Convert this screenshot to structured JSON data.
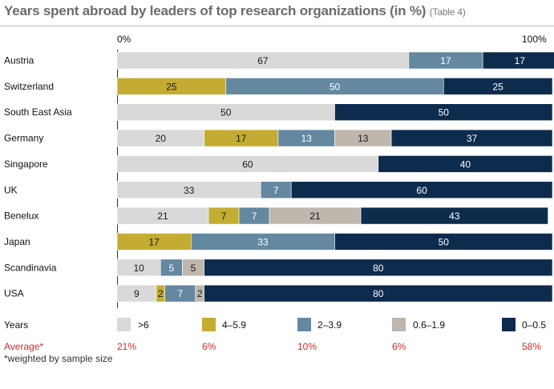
{
  "title": "Years spent abroad by leaders of top research organizations (in %)",
  "title_note": "(Table 4)",
  "axis": {
    "left_label": "0%",
    "right_label": "100%"
  },
  "colors": {
    "gt6": "#d9d9d9",
    "4to5_9": "#c4ac32",
    "2to3_9": "#6488a0",
    "0_6to1_9": "#bfb6ae",
    "0to0_5": "#0d2b4d"
  },
  "chart_data": {
    "type": "bar",
    "orientation": "horizontal",
    "stacked": true,
    "title": "Years spent abroad by leaders of top research organizations (in %)",
    "xlim": [
      0,
      100
    ],
    "categories": [
      "Austria",
      "Switzerland",
      "South East Asia",
      "Germany",
      "Singapore",
      "UK",
      "Benelux",
      "Japan",
      "Scandinavia",
      "USA"
    ],
    "series": [
      {
        "name": ">6",
        "color": "#d9d9d9",
        "values": [
          67,
          0,
          50,
          20,
          60,
          33,
          21,
          0,
          10,
          9
        ]
      },
      {
        "name": "4–5.9",
        "color": "#c4ac32",
        "values": [
          0,
          25,
          0,
          17,
          0,
          0,
          7,
          17,
          0,
          2
        ]
      },
      {
        "name": "2–3.9",
        "color": "#6488a0",
        "values": [
          17,
          50,
          0,
          13,
          0,
          7,
          7,
          33,
          5,
          7
        ]
      },
      {
        "name": "0.6–1.9",
        "color": "#bfb6ae",
        "values": [
          0,
          0,
          0,
          13,
          0,
          0,
          21,
          0,
          5,
          2
        ]
      },
      {
        "name": "0–0.5",
        "color": "#0d2b4d",
        "values": [
          17,
          25,
          50,
          37,
          40,
          60,
          43,
          50,
          80,
          80
        ]
      }
    ]
  },
  "legend": {
    "label": "Years",
    "items": [
      ">6",
      "4–5.9",
      "2–3.9",
      "0.6–1.9",
      "0–0.5"
    ]
  },
  "average": {
    "label": "Average*",
    "values": [
      "21%",
      "6%",
      "10%",
      "6%",
      "58%"
    ]
  },
  "footnote": "*weighted by sample size"
}
